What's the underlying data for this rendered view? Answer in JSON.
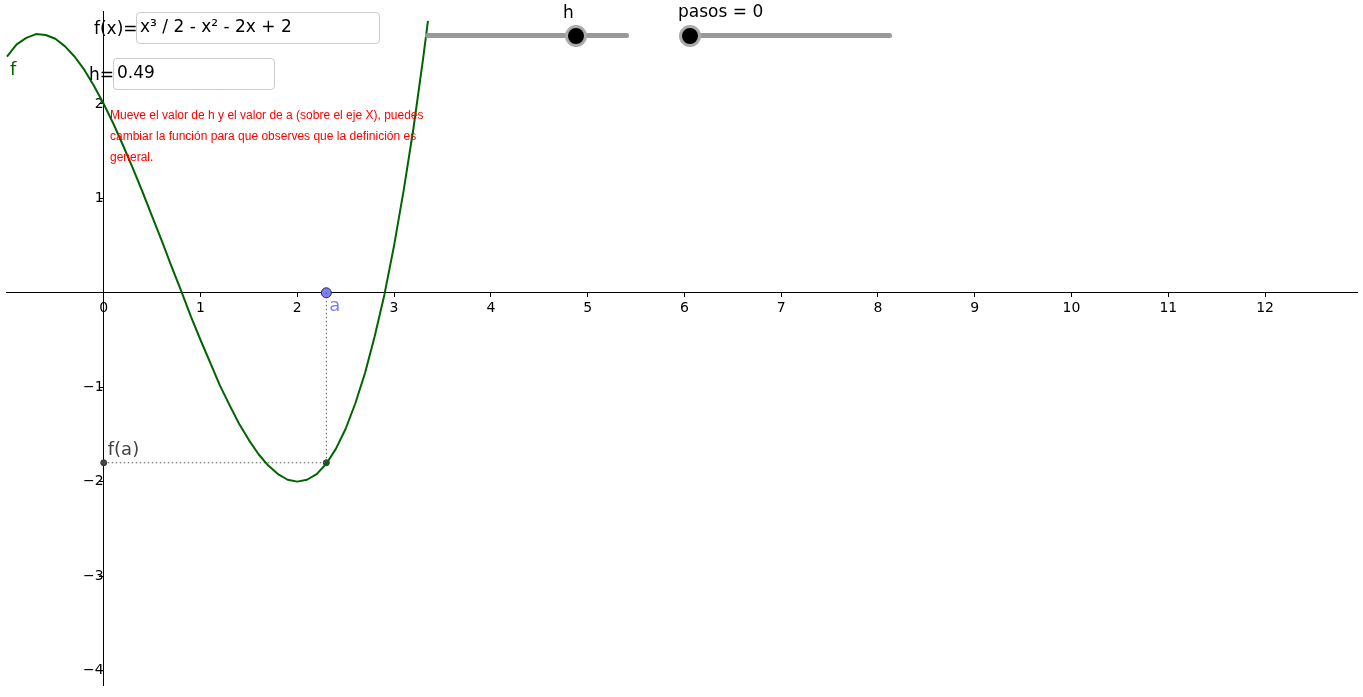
{
  "chart_data": {
    "type": "line",
    "xlim": [
      -1.01,
      12.95
    ],
    "ylim": [
      -4.16,
      2.98
    ],
    "xticks": [
      0,
      1,
      2,
      3,
      4,
      5,
      6,
      7,
      8,
      9,
      10,
      11,
      12
    ],
    "yticks": [
      {
        "value": -4,
        "label": "−4"
      },
      {
        "value": -3,
        "label": "−3"
      },
      {
        "value": -2,
        "label": "−2"
      },
      {
        "value": -1,
        "label": "−1"
      },
      1,
      2
    ],
    "grid": false,
    "legend": false,
    "series": [
      {
        "name": "f",
        "marker": "none",
        "line_style": "solid",
        "color": "#006400",
        "x": [
          -1.0,
          -0.9,
          -0.8,
          -0.7,
          -0.6,
          -0.5,
          -0.4,
          -0.3,
          -0.2,
          -0.1,
          0,
          0.1,
          0.2,
          0.3,
          0.4,
          0.5,
          0.6,
          0.7,
          0.8,
          0.9,
          1.0,
          1.1,
          1.2,
          1.3,
          1.4,
          1.5,
          1.6,
          1.7,
          1.8,
          1.9,
          2.0,
          2.1,
          2.2,
          2.3,
          2.4,
          2.5,
          2.6,
          2.7,
          2.8,
          2.9,
          3.0,
          3.1,
          3.2,
          3.3,
          3.35
        ],
        "values": [
          2.5,
          2.63,
          2.7,
          2.74,
          2.73,
          2.69,
          2.61,
          2.5,
          2.36,
          2.19,
          2,
          1.79,
          1.56,
          1.32,
          1.07,
          0.81,
          0.55,
          0.28,
          0.02,
          -0.25,
          -0.5,
          -0.74,
          -0.98,
          -1.19,
          -1.39,
          -1.56,
          -1.71,
          -1.83,
          -1.92,
          -1.98,
          -2,
          -1.98,
          -1.92,
          -1.81,
          -1.65,
          -1.44,
          -1.17,
          -0.85,
          -0.46,
          -0.02,
          0.5,
          1.09,
          1.74,
          2.48,
          2.88
        ]
      },
      {
        "marker": "none",
        "line_style": "dotted",
        "color": "#555555",
        "x": [
          2.3,
          2.3
        ],
        "values": [
          0,
          -1.8
        ]
      },
      {
        "marker": "none",
        "line_style": "dotted",
        "color": "#555555",
        "x": [
          0,
          2.3
        ],
        "values": [
          -1.8,
          -1.8
        ]
      },
      {
        "name": "a",
        "type": "scatter",
        "marker": "circle",
        "color": "#7d7dff",
        "x": [
          2.3
        ],
        "values": [
          0
        ]
      },
      {
        "name": "f(a)",
        "type": "scatter",
        "marker": "circle",
        "color": "#444444",
        "x": [
          0
        ],
        "values": [
          -1.8
        ]
      },
      {
        "type": "scatter",
        "marker": "circle",
        "color": "#444444",
        "x": [
          2.3
        ],
        "values": [
          -1.8
        ]
      }
    ],
    "annotations": [
      "f(x)=",
      "x³ / 2 - x² - 2x + 2",
      "h=",
      "0.49",
      "h",
      "pasos = 0",
      "Mueve el valor de h y el valor de a (sobre el eje X), puedes cambiar la función para que observes que la definición es general."
    ]
  }
}
